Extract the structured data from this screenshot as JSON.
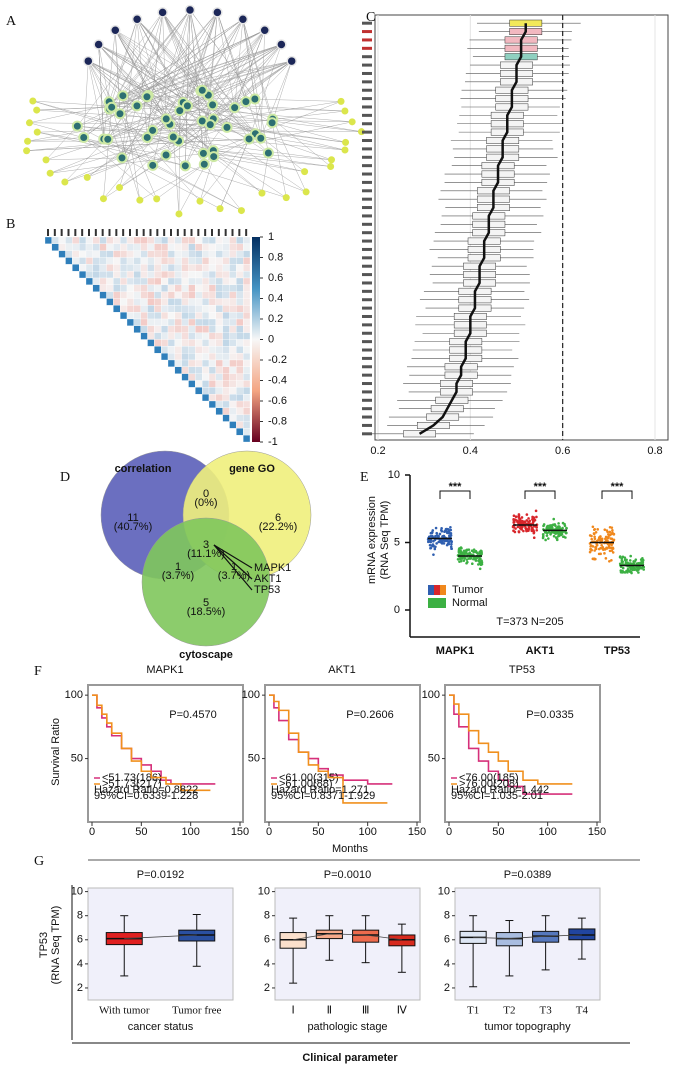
{
  "chart_data": [
    {
      "type": "network",
      "panel": "A"
    },
    {
      "type": "heatmap",
      "panel": "B",
      "ylim": [
        -1,
        1
      ],
      "yticks": [
        1,
        0.8,
        0.6,
        0.4,
        0.2,
        0,
        -0.2,
        -0.4,
        -0.6,
        -0.8,
        -1
      ]
    },
    {
      "type": "boxplot",
      "panel": "C",
      "xlim": [
        0.2,
        0.8
      ],
      "xticks": [
        0.2,
        0.4,
        0.6,
        0.8
      ],
      "refline": 0.6,
      "values": [
        0.52,
        0.52,
        0.51,
        0.51,
        0.51,
        0.5,
        0.5,
        0.5,
        0.49,
        0.49,
        0.49,
        0.48,
        0.48,
        0.48,
        0.47,
        0.47,
        0.47,
        0.46,
        0.46,
        0.46,
        0.45,
        0.45,
        0.45,
        0.44,
        0.44,
        0.44,
        0.43,
        0.43,
        0.43,
        0.42,
        0.42,
        0.42,
        0.41,
        0.41,
        0.41,
        0.4,
        0.4,
        0.4,
        0.39,
        0.39,
        0.39,
        0.38,
        0.38,
        0.37,
        0.37,
        0.36,
        0.35,
        0.34,
        0.32,
        0.29
      ]
    },
    {
      "type": "venn",
      "panel": "D",
      "sets": [
        "correlation",
        "gene GO",
        "cytoscape"
      ],
      "colors": [
        "#5b5fb9",
        "#eff07c",
        "#80c65c"
      ],
      "values": [
        11,
        0,
        6,
        3,
        1,
        1,
        5
      ],
      "value_labels": [
        "(40.7%)",
        "(0%)",
        "(22.2%)",
        "(11.1%)",
        "(3.7%)",
        "(3.7%)",
        "(18.5%)"
      ],
      "genes": [
        "MAPK1",
        "AKT1",
        "TP53"
      ]
    },
    {
      "type": "strip",
      "panel": "E",
      "ylabel": [
        "mRNA expression",
        "(RNA Seq TPM)"
      ],
      "categories": [
        "MAPK1",
        "AKT1",
        "TP53"
      ],
      "ylim": [
        -2,
        10
      ],
      "yticks": [
        0,
        5,
        10
      ],
      "series": [
        {
          "name": "Tumor",
          "colors": [
            "#2f5fb0",
            "#d8262b",
            "#f0881d"
          ],
          "values": [
            5.3,
            6.3,
            5.0
          ]
        },
        {
          "name": "Normal",
          "color": "#3cb043",
          "values": [
            4.0,
            5.9,
            3.3
          ]
        }
      ],
      "annotations": [
        "***",
        "***",
        "***"
      ],
      "note": "T=373    N=205"
    },
    {
      "type": "survival",
      "panel": "F",
      "ylabel": "Survival Ratio",
      "xlabel": "Months",
      "xlim": [
        0,
        150
      ],
      "xticks": [
        0,
        50,
        100,
        150
      ],
      "ylim": [
        0,
        108
      ],
      "yticks": [
        50,
        100
      ],
      "plots": [
        {
          "title": "MAPK1",
          "pvalue": "P=0.4570",
          "pcolor": "#111111",
          "notes": [
            "Hazard Ratio=0.8822",
            "95%CI=0.6339-1.228"
          ],
          "series": [
            {
              "name": "<51.73(186)",
              "color": "#d6307a",
              "x": [
                0,
                5,
                10,
                15,
                20,
                30,
                40,
                50,
                60,
                70,
                80,
                125
              ],
              "values": [
                100,
                90,
                82,
                75,
                68,
                58,
                50,
                45,
                40,
                33,
                30,
                30
              ]
            },
            {
              "name": ">51.73(217)",
              "color": "#f0901e",
              "x": [
                0,
                5,
                10,
                15,
                20,
                30,
                40,
                50,
                60,
                75,
                90,
                120
              ],
              "values": [
                100,
                92,
                85,
                78,
                70,
                58,
                48,
                40,
                35,
                30,
                25,
                25
              ]
            }
          ]
        },
        {
          "title": "AKT1",
          "pvalue": "P=0.2606",
          "pcolor": "#111111",
          "notes": [
            "Hazard Ratio=1.271",
            "95%CI=0.8371-1.929"
          ],
          "series": [
            {
              "name": "<61.00(315)",
              "color": "#d6307a",
              "x": [
                0,
                5,
                10,
                20,
                30,
                40,
                50,
                60,
                75,
                100,
                125
              ],
              "values": [
                100,
                90,
                80,
                65,
                55,
                50,
                42,
                37,
                33,
                30,
                30
              ]
            },
            {
              "name": ">61.00(88)",
              "color": "#f0901e",
              "x": [
                0,
                5,
                10,
                20,
                30,
                40,
                50,
                60,
                75,
                120
              ],
              "values": [
                100,
                95,
                88,
                70,
                55,
                45,
                40,
                35,
                15,
                15
              ]
            }
          ]
        },
        {
          "title": "TP53",
          "pvalue": "P=0.0335",
          "pcolor": "#d03050",
          "notes": [
            "Hazard Ratio=1.442",
            "95%CI=1.035-2.01"
          ],
          "series": [
            {
              "name": "<76.00(185)",
              "color": "#d6307a",
              "x": [
                0,
                5,
                10,
                20,
                30,
                40,
                50,
                60,
                75,
                125
              ],
              "values": [
                100,
                85,
                75,
                58,
                48,
                40,
                33,
                28,
                22,
                22
              ]
            },
            {
              "name": ">76.00(208)",
              "color": "#f0901e",
              "x": [
                0,
                5,
                10,
                20,
                30,
                40,
                50,
                60,
                75,
                90,
                125
              ],
              "values": [
                100,
                93,
                85,
                72,
                62,
                55,
                48,
                40,
                33,
                30,
                30
              ]
            }
          ]
        }
      ]
    },
    {
      "type": "grouped-boxplot",
      "panel": "G",
      "ylabel": [
        "TP53",
        "(RNA Seq TPM)"
      ],
      "xlabel": "Clinical parameter",
      "ylim": [
        1,
        10.3
      ],
      "yticks": [
        2,
        4,
        6,
        8,
        10
      ],
      "groups": [
        {
          "pvalue": "P=0.0192",
          "xlabel": "cancer status",
          "categories": [
            "With tumor",
            "Tumor free"
          ],
          "colors": [
            "#e02020",
            "#2a4fa0"
          ],
          "boxes": [
            [
              3.0,
              5.6,
              6.1,
              6.6,
              8.0
            ],
            [
              3.8,
              5.9,
              6.4,
              6.8,
              8.1
            ]
          ]
        },
        {
          "pvalue": "P=0.0010",
          "xlabel": "pathologic stage",
          "categories": [
            "Ⅰ",
            "Ⅱ",
            "Ⅲ",
            "Ⅳ"
          ],
          "colors": [
            "#fbe0cc",
            "#f6a98a",
            "#ee6b4d",
            "#d72a1e"
          ],
          "boxes": [
            [
              2.4,
              5.3,
              6.0,
              6.6,
              7.8
            ],
            [
              4.3,
              6.1,
              6.5,
              6.8,
              8.0
            ],
            [
              4.1,
              5.8,
              6.4,
              6.8,
              8.0
            ],
            [
              3.3,
              5.5,
              6.0,
              6.4,
              7.3
            ]
          ]
        },
        {
          "pvalue": "P=0.0389",
          "xlabel": "tumor topography",
          "categories": [
            "T1",
            "T2",
            "T3",
            "T4"
          ],
          "colors": [
            "#dde6f4",
            "#a9bde0",
            "#5678bd",
            "#2145a0"
          ],
          "boxes": [
            [
              2.1,
              5.7,
              6.2,
              6.7,
              8.0
            ],
            [
              3.0,
              5.5,
              6.1,
              6.6,
              7.6
            ],
            [
              3.5,
              5.8,
              6.3,
              6.7,
              8.0
            ],
            [
              4.4,
              6.0,
              6.4,
              6.9,
              7.8
            ]
          ]
        }
      ]
    }
  ]
}
